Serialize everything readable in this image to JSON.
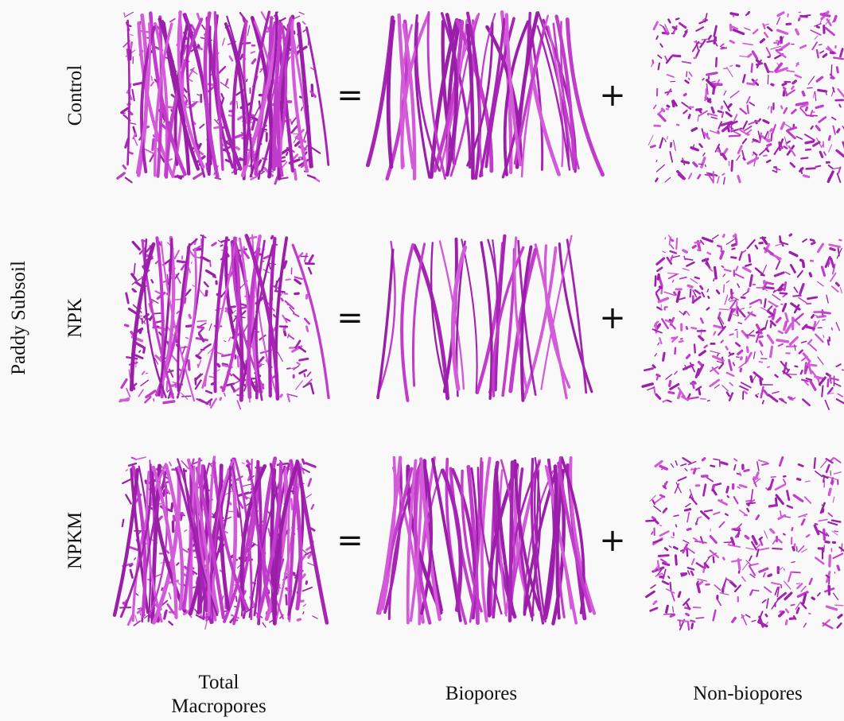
{
  "row_group_label": "Paddy Subsoil",
  "rows": [
    {
      "label": "Control"
    },
    {
      "label": "NPK"
    },
    {
      "label": "NPKM"
    }
  ],
  "columns": [
    {
      "label": "Total Macropores"
    },
    {
      "label": "Biopores"
    },
    {
      "label": "Non-biopores"
    }
  ],
  "operators": [
    "=",
    "+"
  ]
}
